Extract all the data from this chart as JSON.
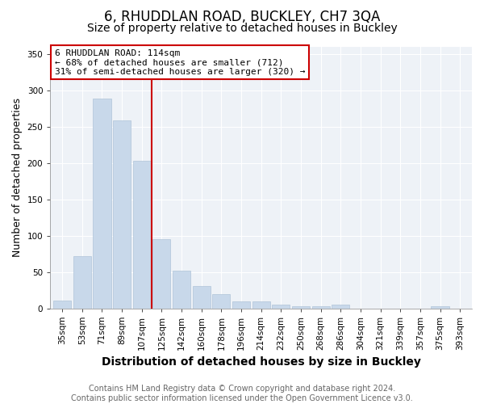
{
  "title": "6, RHUDDLAN ROAD, BUCKLEY, CH7 3QA",
  "subtitle": "Size of property relative to detached houses in Buckley",
  "xlabel": "Distribution of detached houses by size in Buckley",
  "ylabel": "Number of detached properties",
  "categories": [
    "35sqm",
    "53sqm",
    "71sqm",
    "89sqm",
    "107sqm",
    "125sqm",
    "142sqm",
    "160sqm",
    "178sqm",
    "196sqm",
    "214sqm",
    "232sqm",
    "250sqm",
    "268sqm",
    "286sqm",
    "304sqm",
    "321sqm",
    "339sqm",
    "357sqm",
    "375sqm",
    "393sqm"
  ],
  "values": [
    11,
    72,
    288,
    258,
    203,
    95,
    52,
    31,
    20,
    10,
    10,
    5,
    3,
    3,
    5,
    0,
    0,
    0,
    0,
    3,
    0
  ],
  "bar_color": "#c8d8ea",
  "bar_edge_color": "#b0c4d8",
  "property_line_x": 4.5,
  "property_line_label": "6 RHUDDLAN ROAD: 114sqm",
  "annotation_line1": "← 68% of detached houses are smaller (712)",
  "annotation_line2": "31% of semi-detached houses are larger (320) →",
  "annotation_box_facecolor": "#ffffff",
  "annotation_box_edge_color": "#cc0000",
  "vline_color": "#cc0000",
  "ylim": [
    0,
    360
  ],
  "yticks": [
    0,
    50,
    100,
    150,
    200,
    250,
    300,
    350
  ],
  "footer_line1": "Contains HM Land Registry data © Crown copyright and database right 2024.",
  "footer_line2": "Contains public sector information licensed under the Open Government Licence v3.0.",
  "background_color": "#ffffff",
  "plot_background_color": "#eef2f7",
  "grid_color": "#ffffff",
  "title_fontsize": 12,
  "subtitle_fontsize": 10,
  "xlabel_fontsize": 10,
  "ylabel_fontsize": 9,
  "tick_fontsize": 7.5,
  "annotation_fontsize": 8,
  "footer_fontsize": 7
}
